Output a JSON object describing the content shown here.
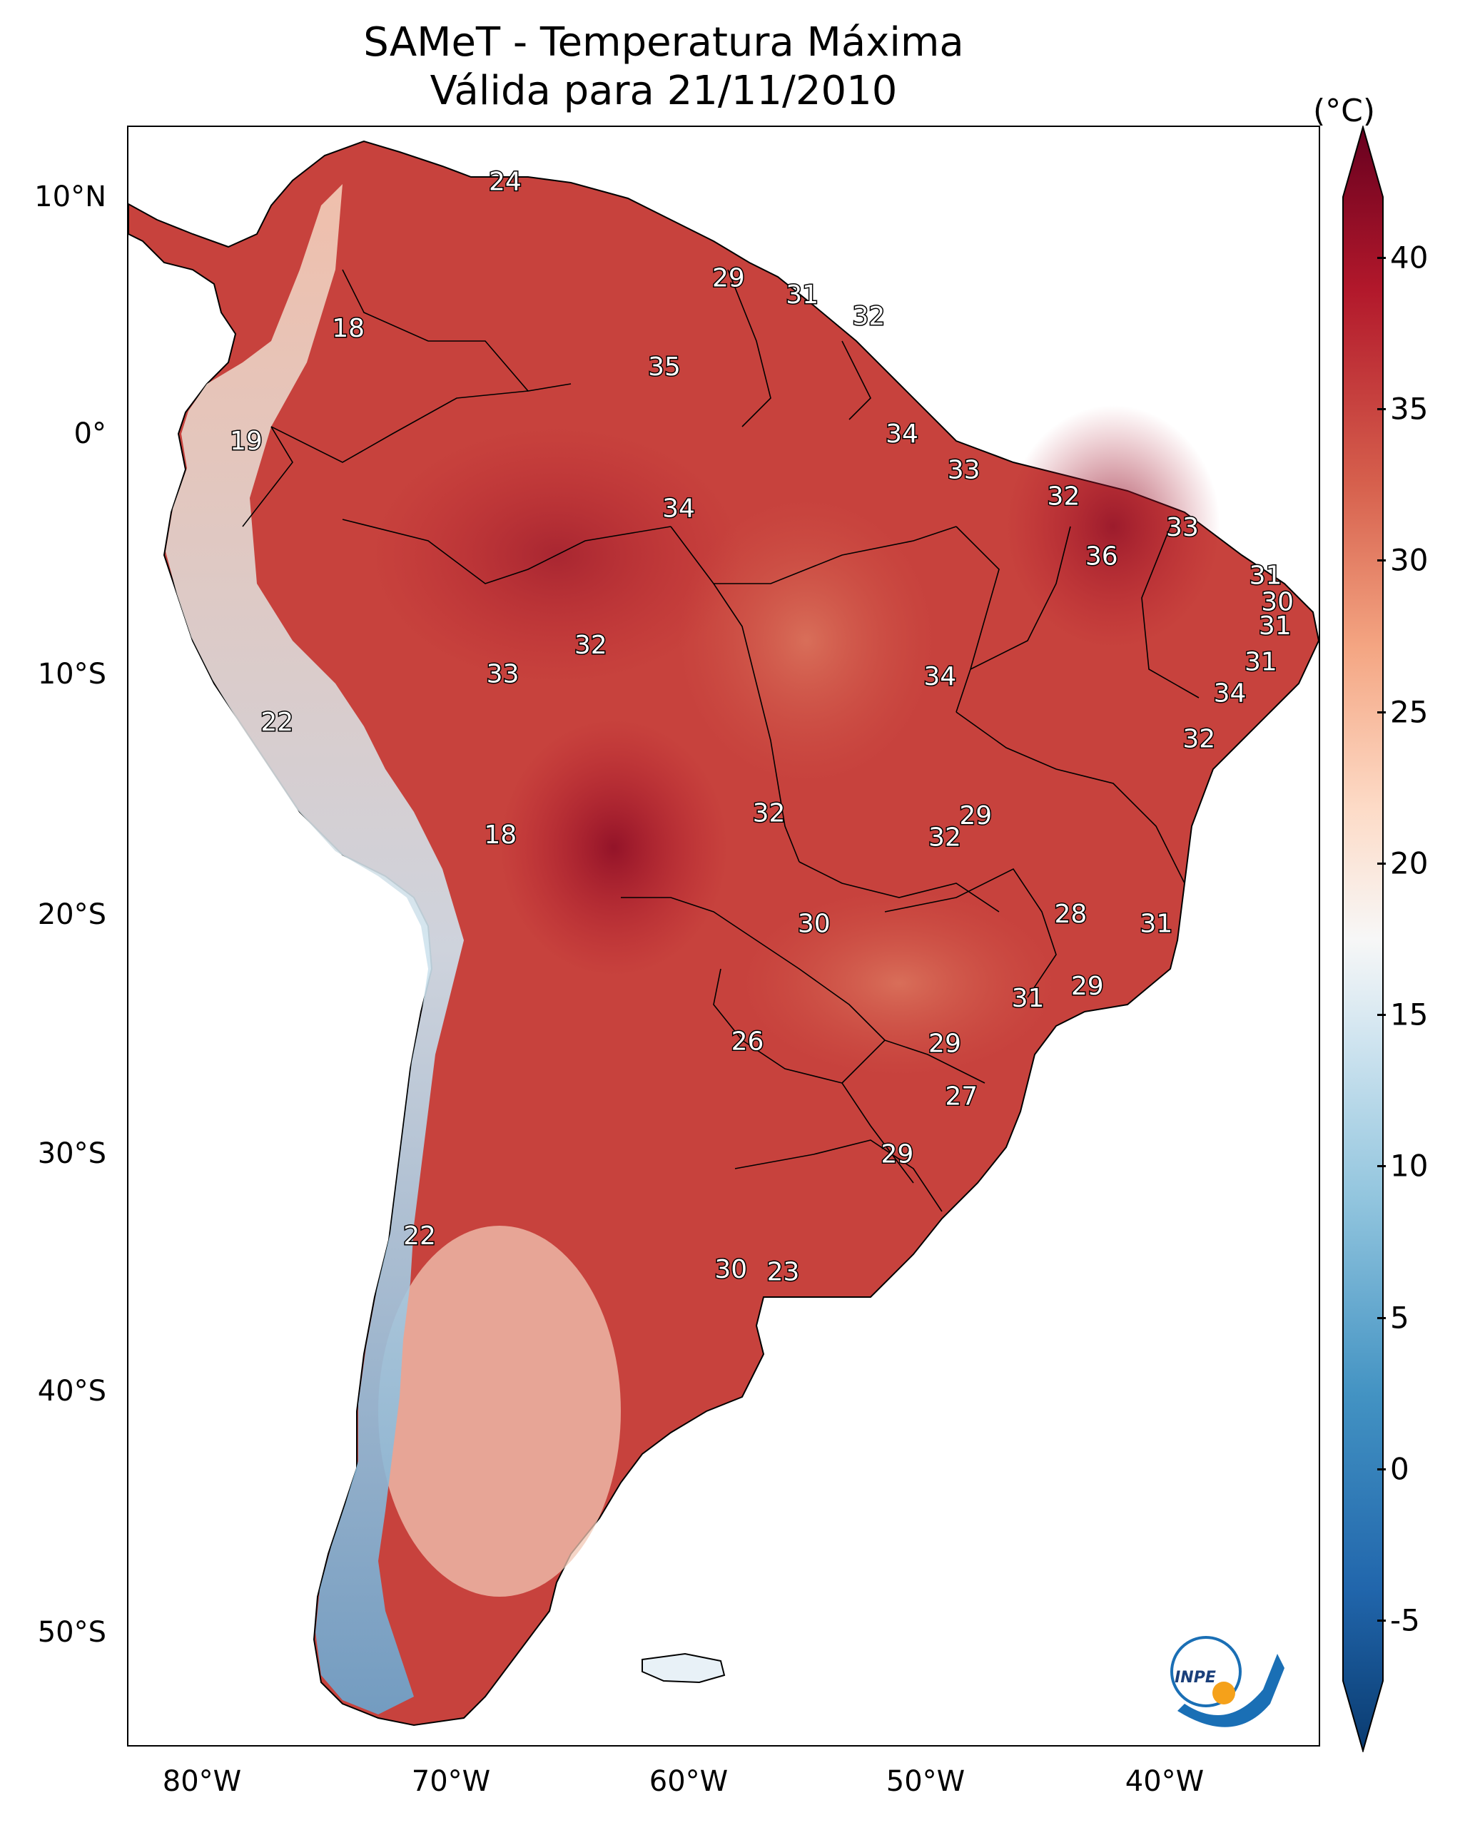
{
  "title": {
    "line1": "SAMeT - Temperatura Máxima",
    "line2": "Válida para 21/11/2010"
  },
  "axes": {
    "lat_labels": [
      "10°N",
      "0°",
      "10°S",
      "20°S",
      "30°S",
      "40°S",
      "50°S"
    ],
    "lon_labels": [
      "80°W",
      "70°W",
      "60°W",
      "50°W",
      "40°W"
    ]
  },
  "colorbar": {
    "unit": "(°C)",
    "min": -7,
    "max": 42,
    "ticks": [
      "40",
      "35",
      "30",
      "25",
      "20",
      "15",
      "10",
      "5",
      "0",
      "-5"
    ],
    "colors": [
      "#0a3b70",
      "#2166ac",
      "#4393c3",
      "#92c5de",
      "#d1e5f0",
      "#f7f7f7",
      "#fddbc7",
      "#f4a582",
      "#d6604d",
      "#b2182b",
      "#67001f"
    ]
  },
  "contour_labels": [
    {
      "value": "24",
      "lon": -67.3,
      "lat": 10.5
    },
    {
      "value": "29",
      "lon": -57.9,
      "lat": 6.5
    },
    {
      "value": "31",
      "lon": -54.8,
      "lat": 5.8
    },
    {
      "value": "32",
      "lon": -52.0,
      "lat": 4.9
    },
    {
      "value": "18",
      "lon": -73.9,
      "lat": 4.4
    },
    {
      "value": "35",
      "lon": -60.6,
      "lat": 2.8
    },
    {
      "value": "34",
      "lon": -50.6,
      "lat": 0.0
    },
    {
      "value": "19",
      "lon": -78.2,
      "lat": -0.3
    },
    {
      "value": "33",
      "lon": -48.0,
      "lat": -1.5
    },
    {
      "value": "32",
      "lon": -43.8,
      "lat": -2.6
    },
    {
      "value": "34",
      "lon": -60.0,
      "lat": -3.1
    },
    {
      "value": "33",
      "lon": -38.8,
      "lat": -3.9
    },
    {
      "value": "36",
      "lon": -42.2,
      "lat": -5.1
    },
    {
      "value": "31",
      "lon": -35.3,
      "lat": -5.9
    },
    {
      "value": "30",
      "lon": -34.8,
      "lat": -7.0
    },
    {
      "value": "31",
      "lon": -34.9,
      "lat": -8.0
    },
    {
      "value": "32",
      "lon": -63.7,
      "lat": -8.8
    },
    {
      "value": "33",
      "lon": -67.4,
      "lat": -10.0
    },
    {
      "value": "34",
      "lon": -49.0,
      "lat": -10.1
    },
    {
      "value": "31",
      "lon": -35.5,
      "lat": -9.5
    },
    {
      "value": "34",
      "lon": -36.8,
      "lat": -10.8
    },
    {
      "value": "22",
      "lon": -76.9,
      "lat": -12.0
    },
    {
      "value": "32",
      "lon": -38.1,
      "lat": -12.7
    },
    {
      "value": "32",
      "lon": -56.2,
      "lat": -15.8
    },
    {
      "value": "29",
      "lon": -47.5,
      "lat": -15.9
    },
    {
      "value": "32",
      "lon": -48.8,
      "lat": -16.8
    },
    {
      "value": "18",
      "lon": -67.5,
      "lat": -16.7
    },
    {
      "value": "28",
      "lon": -43.5,
      "lat": -20.0
    },
    {
      "value": "30",
      "lon": -54.3,
      "lat": -20.4
    },
    {
      "value": "31",
      "lon": -39.9,
      "lat": -20.4
    },
    {
      "value": "29",
      "lon": -42.8,
      "lat": -23.0
    },
    {
      "value": "31",
      "lon": -45.3,
      "lat": -23.5
    },
    {
      "value": "26",
      "lon": -57.1,
      "lat": -25.3
    },
    {
      "value": "29",
      "lon": -48.8,
      "lat": -25.4
    },
    {
      "value": "27",
      "lon": -48.1,
      "lat": -27.6
    },
    {
      "value": "29",
      "lon": -50.8,
      "lat": -30.0
    },
    {
      "value": "22",
      "lon": -70.9,
      "lat": -33.4
    },
    {
      "value": "30",
      "lon": -57.8,
      "lat": -34.8
    },
    {
      "value": "23",
      "lon": -55.6,
      "lat": -34.9
    }
  ],
  "logo": {
    "text": "INPE"
  }
}
